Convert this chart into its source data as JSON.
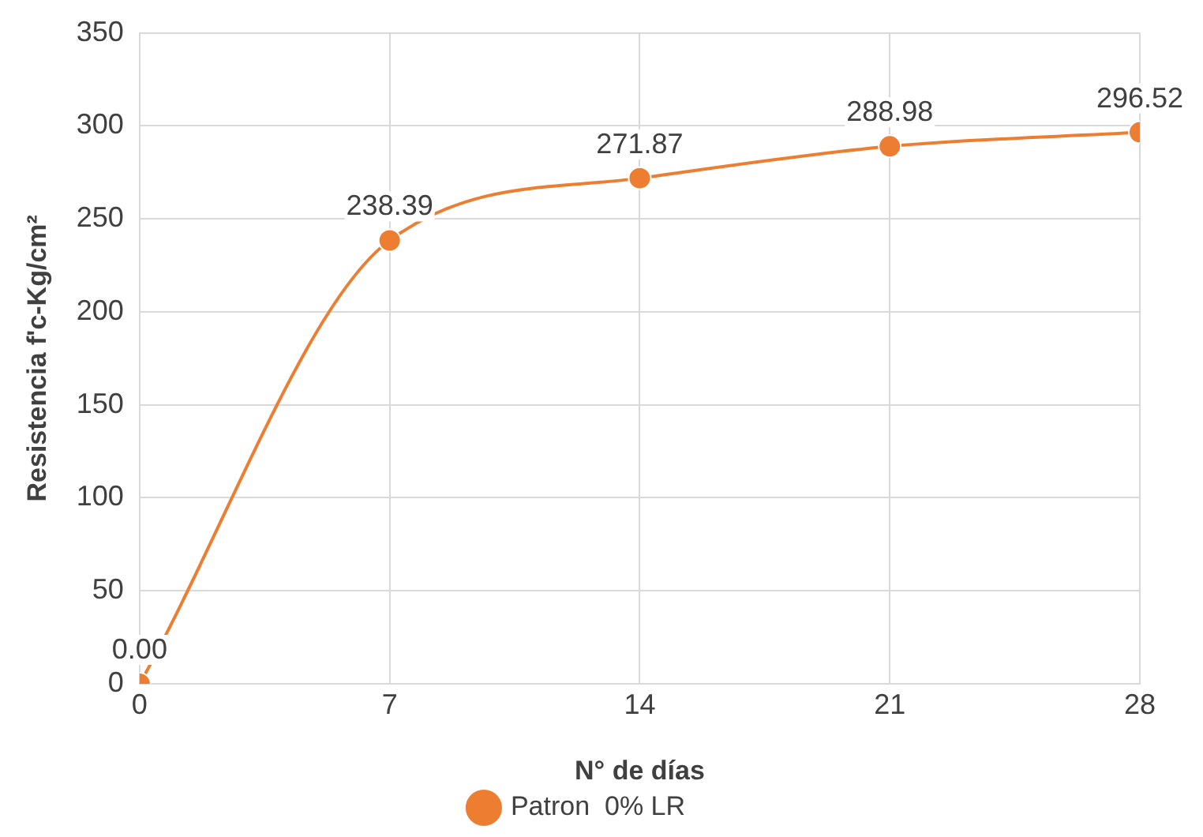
{
  "chart_data": {
    "type": "line",
    "xlabel": "N° de días",
    "ylabel": "Resistencia f'c-Kg/cm²",
    "x": [
      0,
      7,
      14,
      21,
      28
    ],
    "series": [
      {
        "name": "Patron  0% LR",
        "color": "#ed7d31",
        "values": [
          0,
          238.39,
          271.87,
          288.98,
          296.52
        ],
        "value_labels": [
          "0.00",
          "238.39",
          "271.87",
          "288.98",
          "296.52"
        ]
      }
    ],
    "xlim": [
      0,
      28
    ],
    "xticks": [
      0,
      7,
      14,
      21,
      28
    ],
    "ylim": [
      0,
      350
    ],
    "yticks": [
      0,
      50,
      100,
      150,
      200,
      250,
      300,
      350
    ],
    "grid": true,
    "legend": "bottom",
    "marker": "circle",
    "line_style": "solid"
  }
}
